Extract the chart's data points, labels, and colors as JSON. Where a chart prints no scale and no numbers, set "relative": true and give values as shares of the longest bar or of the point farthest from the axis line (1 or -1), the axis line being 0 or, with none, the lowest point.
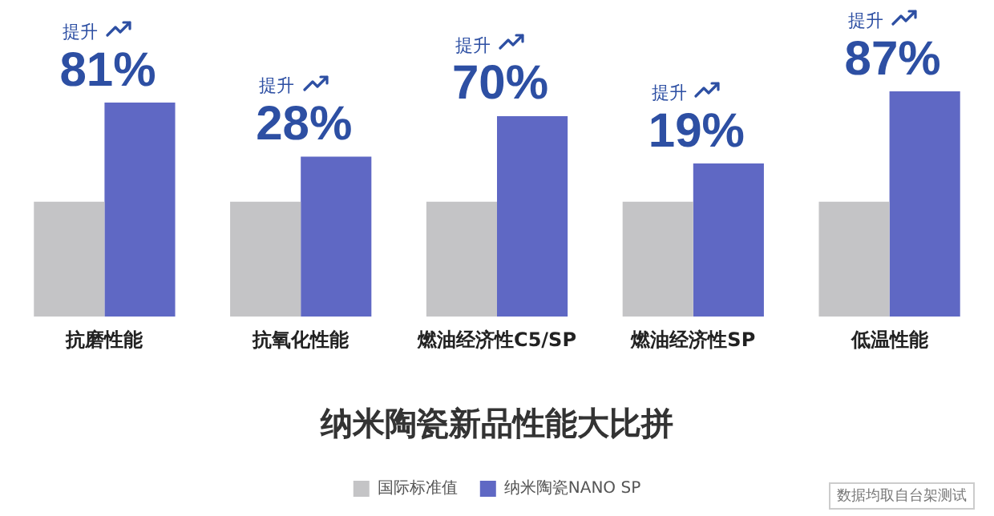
{
  "chart_data": {
    "type": "bar",
    "title": "纳米陶瓷新品性能大比拼",
    "relative": true,
    "categories": [
      "抗磨性能",
      "抗氧化性能",
      "燃油经济性C5/SP",
      "燃油经济性SP",
      "低温性能"
    ],
    "series": [
      {
        "name": "国际标准值",
        "color": "#c4c4c6",
        "values": [
          0.51,
          0.51,
          0.51,
          0.51,
          0.51
        ]
      },
      {
        "name": "纳米陶瓷NANO SP",
        "color": "#5f68c4",
        "values": [
          0.95,
          0.71,
          0.89,
          0.68,
          1.0
        ]
      }
    ],
    "annotations": [
      {
        "text": "提升\n81%",
        "x": "抗磨性能",
        "y": 0.95
      },
      {
        "text": "提升\n28%",
        "x": "抗氧化性能",
        "y": 0.71
      },
      {
        "text": "提升\n70%",
        "x": "燃油经济性C5/SP",
        "y": 0.89
      },
      {
        "text": "提升\n19%",
        "x": "燃油经济性SP",
        "y": 0.68
      },
      {
        "text": "提升\n87%",
        "x": "低温性能",
        "y": 1.0
      },
      "数据均取自台架测试"
    ],
    "legend": "bottom",
    "grid": false
  }
}
